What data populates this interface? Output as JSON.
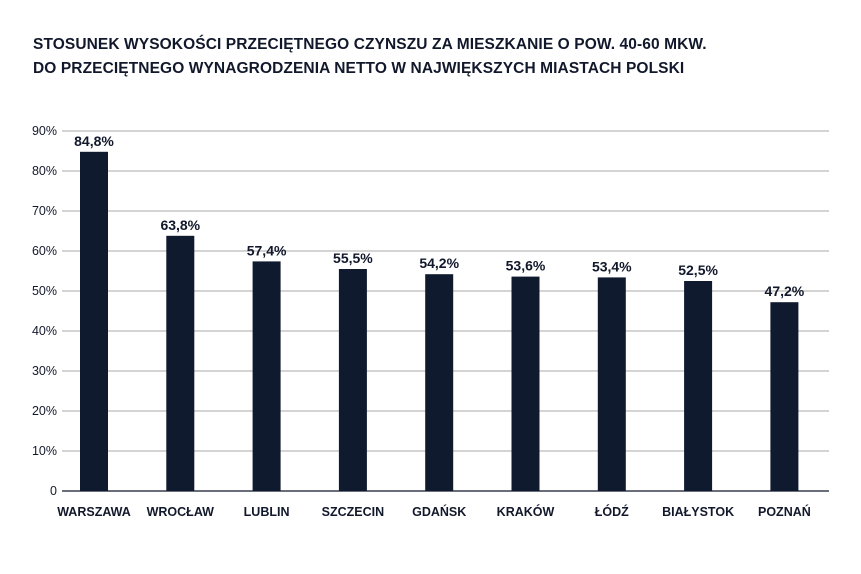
{
  "chart_data": {
    "type": "bar",
    "title_lines": [
      "STOSUNEK WYSOKOŚCI PRZECIĘTNEGO CZYNSZU ZA MIESZKANIE O POW. 40-60 MKW.",
      "DO PRZECIĘTNEGO WYNAGRODZENIA NETTO W NAJWIĘKSZYCH MIASTACH POLSKI"
    ],
    "categories": [
      "WARSZAWA",
      "WROCŁAW",
      "LUBLIN",
      "SZCZECIN",
      "GDAŃSK",
      "KRAKÓW",
      "ŁÓDŹ",
      "BIAŁYSTOK",
      "POZNAŃ"
    ],
    "values": [
      84.8,
      63.8,
      57.4,
      55.5,
      54.2,
      53.6,
      53.4,
      52.5,
      47.2
    ],
    "value_labels": [
      "84,8%",
      "63,8%",
      "57,4%",
      "55,5%",
      "54,2%",
      "53,6%",
      "53,4%",
      "52,5%",
      "47,2%"
    ],
    "yticks": [
      0,
      10,
      20,
      30,
      40,
      50,
      60,
      70,
      80,
      90
    ],
    "ytick_labels": [
      "0",
      "10%",
      "20%",
      "30%",
      "40%",
      "50%",
      "60%",
      "70%",
      "80%",
      "90%"
    ],
    "ylim": [
      0,
      90
    ],
    "xlabel": "",
    "ylabel": "",
    "grid": true,
    "legend": "none",
    "colors": {
      "bar": "#101a2e",
      "grid": "#8e8e8e",
      "text": "#12182b"
    }
  }
}
